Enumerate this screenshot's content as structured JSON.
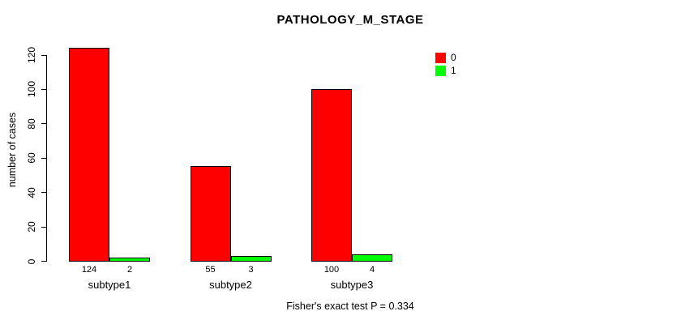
{
  "chart_data": {
    "type": "bar",
    "title": "PATHOLOGY_M_STAGE",
    "ylabel": "number of cases",
    "xlabel": "",
    "ylim": [
      0,
      120
    ],
    "yticks": [
      0,
      20,
      40,
      60,
      80,
      100,
      120
    ],
    "grid": false,
    "legend_position": "top-right",
    "categories": [
      "subtype1",
      "subtype2",
      "subtype3"
    ],
    "series": [
      {
        "name": "0",
        "color": "#ff0000",
        "values": [
          124,
          55,
          100
        ]
      },
      {
        "name": "1",
        "color": "#00ff00",
        "values": [
          2,
          3,
          4
        ]
      }
    ],
    "bar_value_labels_shown": true,
    "annotation": "Fisher's exact test P = 0.334",
    "bar_border_color": "#000000"
  }
}
